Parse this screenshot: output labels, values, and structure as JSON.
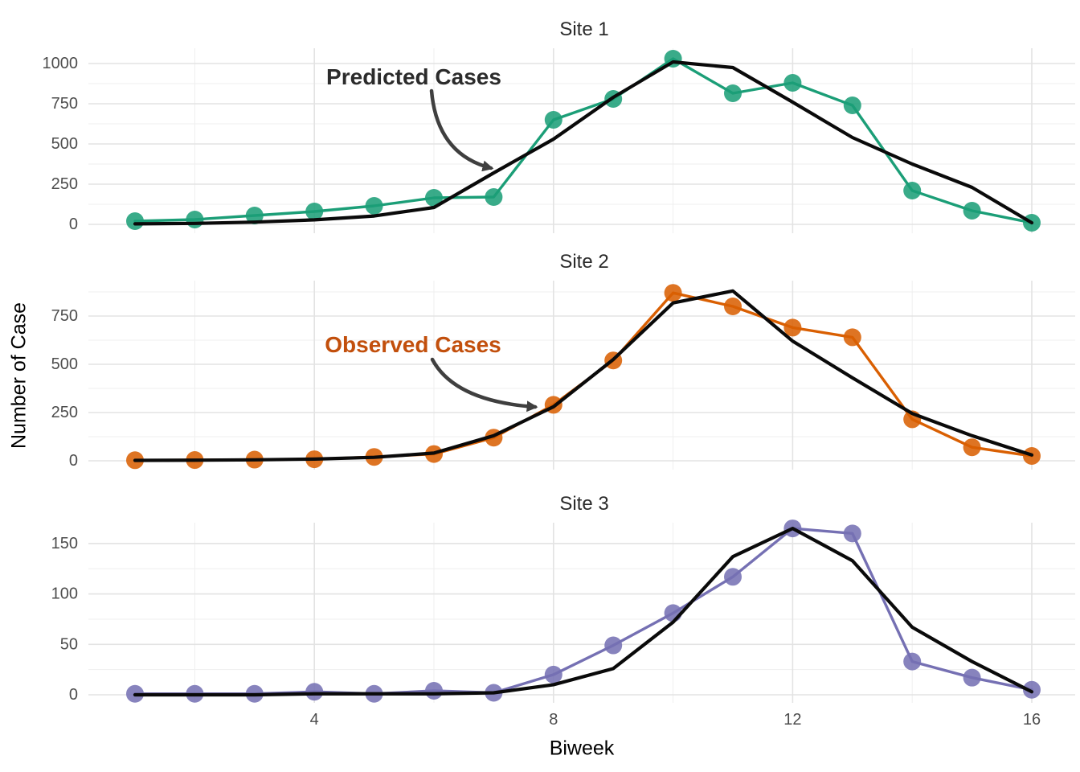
{
  "figure": {
    "background": "#ffffff"
  },
  "chart_data": {
    "type": "line",
    "description": "Faceted comparison of predicted (black line) vs observed (colored points and line) cases per biweek at three sites",
    "xlabel": "Biweek",
    "ylabel": "Number of Case",
    "x": [
      1,
      2,
      3,
      4,
      5,
      6,
      7,
      8,
      9,
      10,
      11,
      12,
      13,
      14,
      15,
      16
    ],
    "x_ticks": [
      4,
      8,
      12,
      16
    ],
    "x_minor_ticks": [
      2,
      6,
      10,
      14
    ],
    "xlim": [
      1,
      16
    ],
    "grid": "major+minor, light gray, white background",
    "legend": "none (annotated with arrows instead)",
    "predicted_color": "#0a0a0a",
    "facets": [
      {
        "title": "Site 1",
        "observed_color": "#1b9e77",
        "y_ticks": [
          0,
          250,
          500,
          750,
          1000
        ],
        "y_minor_ticks": [
          125,
          375,
          625,
          875
        ],
        "ylim": [
          -52,
          1092
        ],
        "series": [
          {
            "name": "Observed Cases",
            "style": "points+line"
          },
          {
            "name": "Predicted Cases",
            "style": "line"
          }
        ],
        "observed": [
          20,
          30,
          55,
          80,
          115,
          165,
          170,
          650,
          780,
          1030,
          815,
          880,
          740,
          210,
          85,
          10
        ],
        "predicted": [
          3,
          6,
          14,
          28,
          52,
          105,
          320,
          530,
          790,
          1010,
          975,
          760,
          540,
          375,
          230,
          10
        ]
      },
      {
        "title": "Site 2",
        "observed_color": "#d95f02",
        "y_ticks": [
          0,
          250,
          500,
          750
        ],
        "y_minor_ticks": [
          125,
          375,
          625,
          875
        ],
        "ylim": [
          -45,
          935
        ],
        "series": [
          {
            "name": "Observed Cases",
            "style": "points+line"
          },
          {
            "name": "Predicted Cases",
            "style": "line"
          }
        ],
        "observed": [
          3,
          4,
          6,
          8,
          20,
          35,
          120,
          290,
          520,
          870,
          800,
          690,
          640,
          215,
          70,
          25
        ],
        "predicted": [
          2,
          3,
          5,
          9,
          18,
          40,
          130,
          280,
          525,
          818,
          880,
          620,
          430,
          245,
          130,
          30
        ]
      },
      {
        "title": "Site 3",
        "observed_color": "#7570b3",
        "y_ticks": [
          0,
          50,
          100,
          150
        ],
        "y_minor_ticks": [
          25,
          75,
          125
        ],
        "ylim": [
          -8,
          172
        ],
        "series": [
          {
            "name": "Observed Cases",
            "style": "points+line"
          },
          {
            "name": "Predicted Cases",
            "style": "line"
          }
        ],
        "observed": [
          1,
          1,
          1,
          3,
          1,
          4,
          2,
          20,
          49,
          81,
          117,
          165,
          160,
          33,
          17,
          5
        ],
        "predicted": [
          0,
          0,
          0,
          1,
          1,
          1,
          2,
          10,
          26,
          72,
          137,
          165,
          133,
          67,
          33,
          3
        ]
      }
    ],
    "annotations": [
      {
        "label": "Predicted Cases",
        "color": "#2b2b2b",
        "points_to": "black predicted line in Site 1 panel near biweek 7"
      },
      {
        "label": "Observed Cases",
        "color": "#c24f0c",
        "points_to": "orange observed point in Site 2 panel at biweek 8"
      }
    ]
  }
}
